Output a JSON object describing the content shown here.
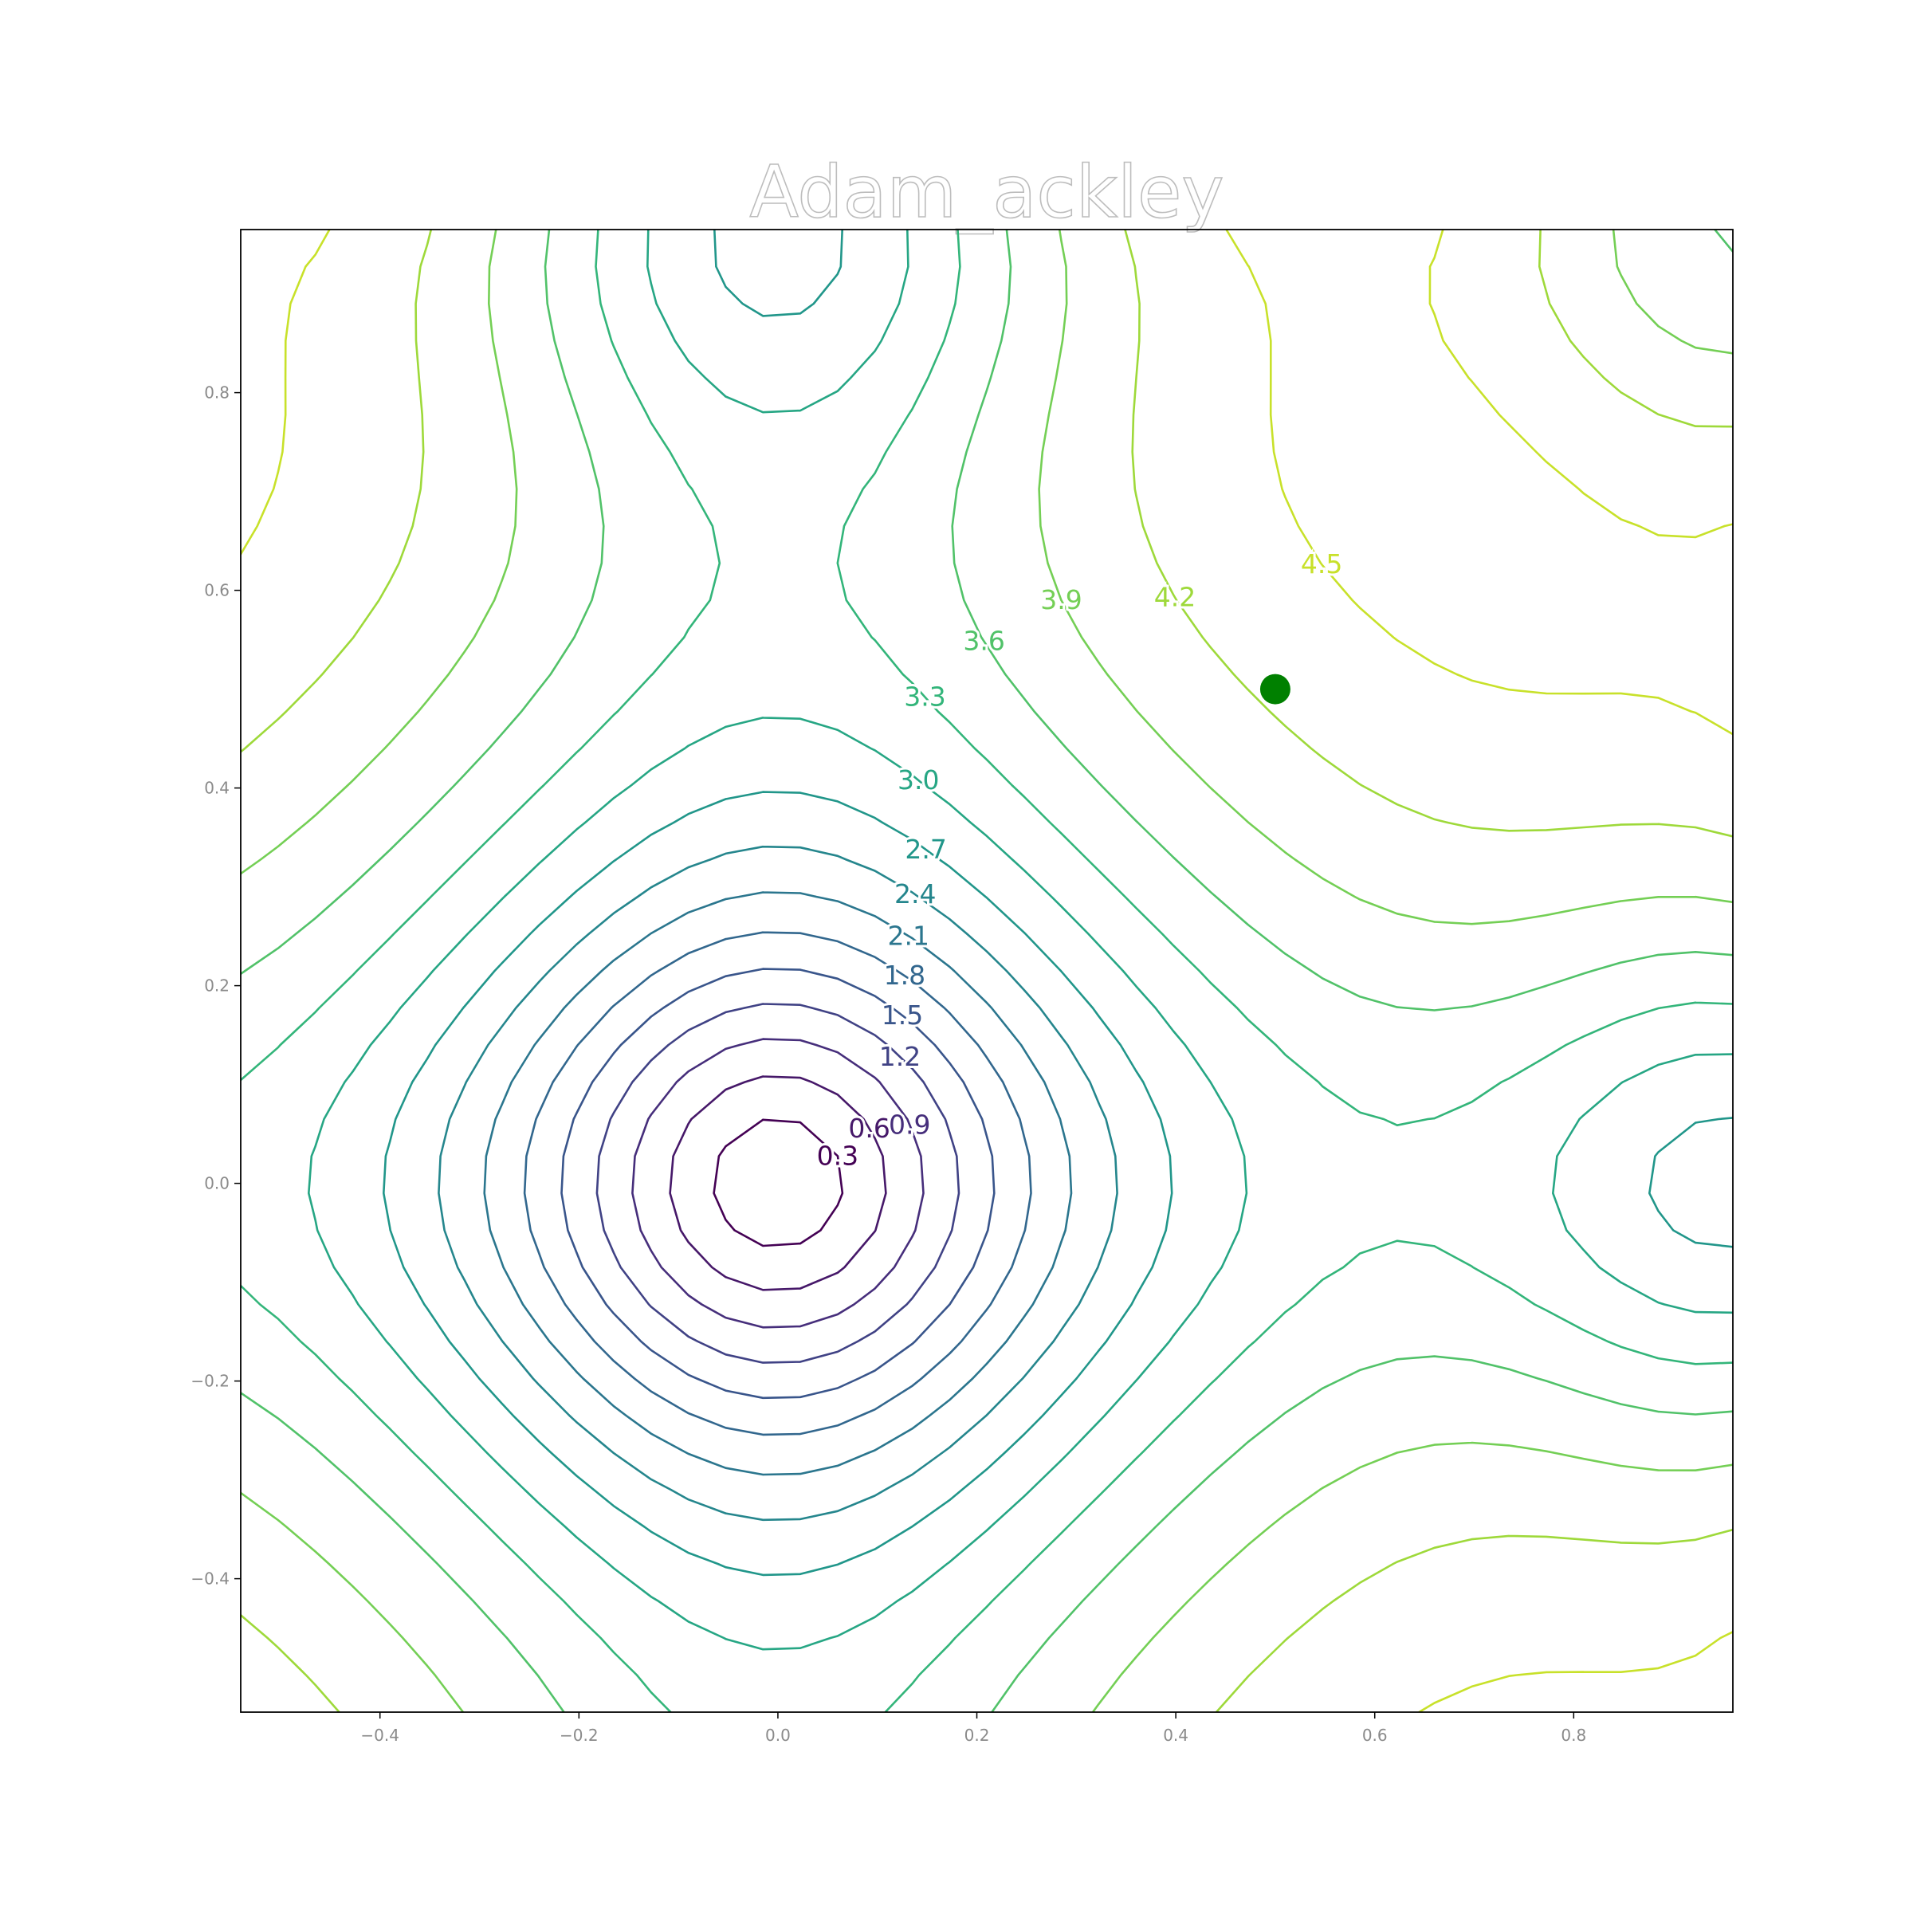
{
  "chart_data": {
    "type": "contour",
    "title": "Adam_ackley",
    "function": "ackley",
    "xlabel": "",
    "ylabel": "",
    "xlim": [
      -0.54,
      0.96
    ],
    "ylim": [
      -0.535,
      0.965
    ],
    "x_ticks": [
      "−0.4",
      "−0.2",
      "0.0",
      "0.2",
      "0.4",
      "0.6",
      "0.8"
    ],
    "y_ticks": [
      "−0.4",
      "−0.2",
      "0.0",
      "0.2",
      "0.4",
      "0.6",
      "0.8"
    ],
    "contour_levels": [
      0.3,
      0.6,
      0.9,
      1.2,
      1.5,
      1.8,
      2.1,
      2.4,
      2.7,
      3.0,
      3.3,
      3.6,
      3.9,
      4.2,
      4.5
    ],
    "level_labels": [
      "0.3",
      "0.6",
      "0.9",
      "1.2",
      "1.5",
      "1.8",
      "2.1",
      "2.4",
      "2.7",
      "3.0",
      "3.3",
      "3.6",
      "3.9",
      "4.2",
      "4.5"
    ],
    "colormap": "viridis",
    "grid": false,
    "marker": {
      "x": 0.5,
      "y": 0.5,
      "color": "#008000"
    }
  }
}
